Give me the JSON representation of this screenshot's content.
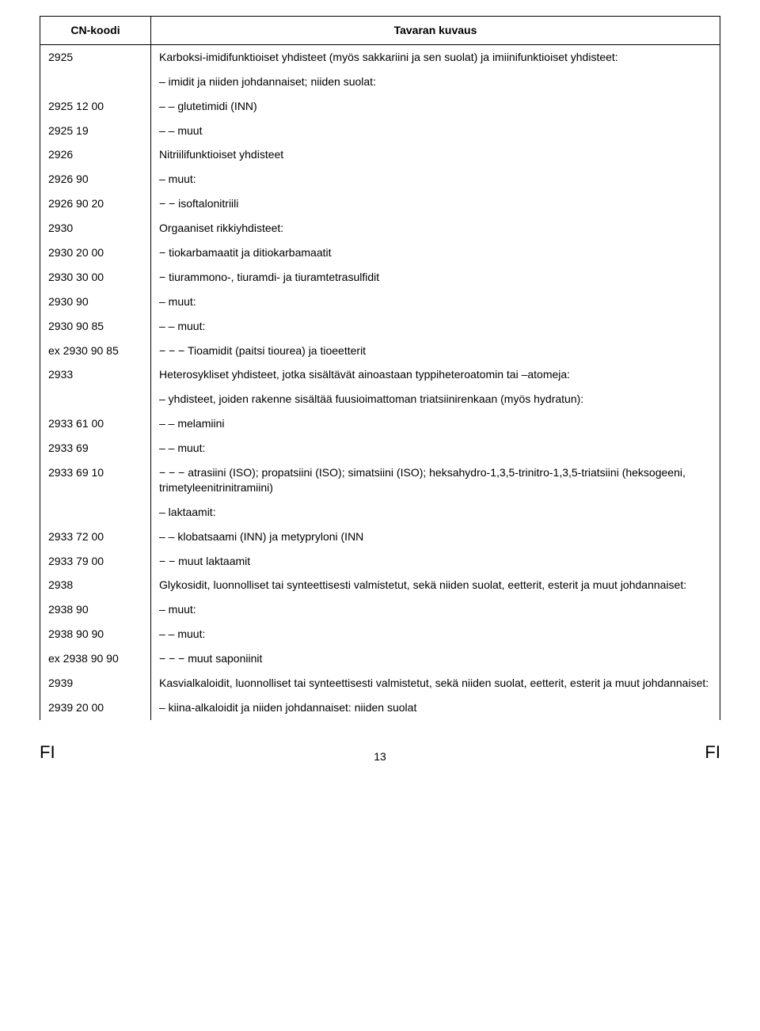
{
  "header": {
    "col1": "CN-koodi",
    "col2": "Tavaran kuvaus"
  },
  "rows": [
    {
      "code": "2925",
      "desc": "Karboksi-imidifunktioiset yhdisteet (myös sakkariini ja sen suolat) ja imiinifunktioiset yhdisteet:",
      "justify": true
    },
    {
      "code": "",
      "desc": "– imidit ja niiden johdannaiset; niiden suolat:"
    },
    {
      "code": "2925 12 00",
      "desc": "– – glutetimidi (INN)"
    },
    {
      "code": "2925 19",
      "desc": "– – muut"
    },
    {
      "code": "2926",
      "desc": "Nitriilifunktioiset yhdisteet"
    },
    {
      "code": "2926 90",
      "desc": "– muut:"
    },
    {
      "code": "2926 90 20",
      "desc": "− − isoftalonitriili"
    },
    {
      "code": "2930",
      "desc": "Orgaaniset rikkiyhdisteet:"
    },
    {
      "code": "2930 20 00",
      "desc": "− tiokarbamaatit ja ditiokarbamaatit"
    },
    {
      "code": "2930 30 00",
      "desc": "− tiurammono-, tiuramdi- ja tiuramtetrasulfidit"
    },
    {
      "code": "2930 90",
      "desc": "– muut:"
    },
    {
      "code": "2930 90 85",
      "desc": "– – muut:"
    },
    {
      "code": "ex 2930 90 85",
      "desc": "− − − Tioamidit (paitsi tiourea) ja tioeetterit"
    },
    {
      "code": "2933",
      "desc": "Heterosykliset yhdisteet, jotka sisältävät ainoastaan typpiheteroatomin tai –atomeja:"
    },
    {
      "code": "",
      "desc": "– yhdisteet, joiden rakenne sisältää fuusioimattoman triatsiinirenkaan (myös hydratun):"
    },
    {
      "code": "2933 61 00",
      "desc": "– – melamiini"
    },
    {
      "code": "2933 69",
      "desc": "– – muut:"
    },
    {
      "code": "2933 69 10",
      "desc": "− − − atrasiini (ISO); propatsiini (ISO); simatsiini (ISO); heksahydro-1,3,5-trinitro-1,3,5-triatsiini (heksogeeni, trimetyleenitrinitramiini)"
    },
    {
      "code": "",
      "desc": "– laktaamit:"
    },
    {
      "code": "2933 72 00",
      "desc": "– – klobatsaami (INN) ja metypryloni (INN"
    },
    {
      "code": "2933 79 00",
      "desc": "− − muut laktaamit"
    },
    {
      "code": "2938",
      "desc": "Glykosidit, luonnolliset tai synteettisesti valmistetut, sekä niiden suolat, eetterit, esterit ja muut johdannaiset:",
      "justify": true
    },
    {
      "code": "2938 90",
      "desc": "– muut:"
    },
    {
      "code": "2938 90 90",
      "desc": "– – muut:"
    },
    {
      "code": "ex 2938 90 90",
      "desc": "− − − muut saponiinit"
    },
    {
      "code": "2939",
      "desc": "Kasvialkaloidit, luonnolliset tai synteettisesti valmistetut, sekä niiden suolat, eetterit, esterit ja muut johdannaiset:",
      "justify": true
    },
    {
      "code": "2939 20 00",
      "desc": "– kiina-alkaloidit ja niiden johdannaiset: niiden suolat"
    }
  ],
  "footer": {
    "left": "FI",
    "page": "13",
    "right": "FI"
  }
}
